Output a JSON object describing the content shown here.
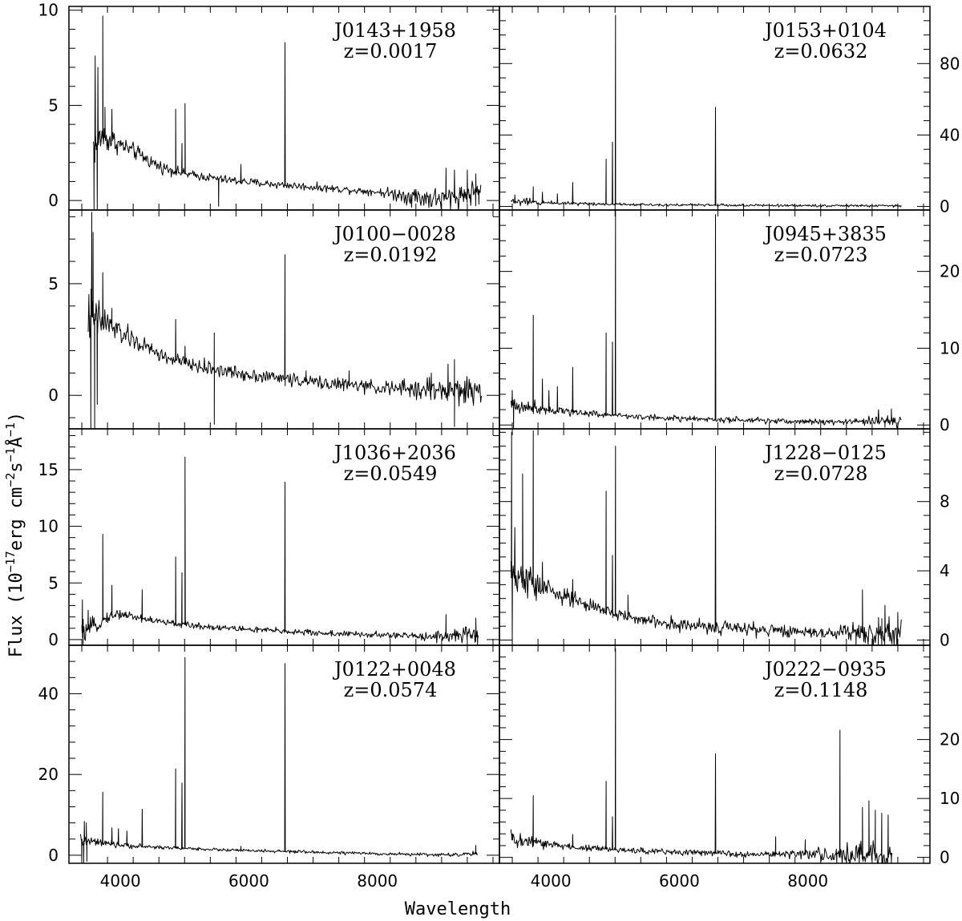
{
  "chart_data": {
    "type": "line",
    "xlabel": "Wavelength",
    "ylabel_parts": {
      "prefix": "Flux (10",
      "exp1": "−17",
      "mid1": "erg cm",
      "exp2": "−2",
      "mid2": "s",
      "exp3": "−1",
      "mid3": "Å",
      "exp4": "−1",
      "suffix": ")"
    },
    "xlim": [
      3200,
      9900
    ],
    "xticks": [
      4000,
      6000,
      8000
    ],
    "panels": [
      {
        "name": "J0143+1958",
        "redshift": "z=0.0017",
        "column": 0,
        "row": 0,
        "tick_side": "left",
        "ylim": [
          -0.5,
          10.2
        ],
        "yticks": [
          0,
          5,
          10
        ],
        "xrange": [
          3580,
          9620
        ],
        "continuum": {
          "x": [
            3620,
            3700,
            3900,
            4200,
            4600,
            5000,
            5600,
            6200,
            6800,
            7400,
            8000,
            8600,
            9000,
            9620
          ],
          "y": [
            2.9,
            3.4,
            3.1,
            2.6,
            1.8,
            1.4,
            1.1,
            0.9,
            0.75,
            0.6,
            0.45,
            0.2,
            0.05,
            0.5
          ]
        },
        "noise": [
          [
            3580,
            1.2
          ],
          [
            4000,
            0.5
          ],
          [
            5000,
            0.25
          ],
          [
            8000,
            0.2
          ],
          [
            8600,
            0.6
          ],
          [
            9620,
            0.7
          ]
        ],
        "lines": [
          [
            3608,
            7.6,
            8
          ],
          [
            3650,
            7.0,
            6
          ],
          [
            3727,
            9.7,
            7
          ],
          [
            3760,
            4.9,
            6
          ],
          [
            3869,
            4.8,
            5
          ],
          [
            4861,
            4.8,
            5
          ],
          [
            4959,
            3.0,
            5
          ],
          [
            5007,
            5.1,
            5
          ],
          [
            5876,
            1.9,
            5
          ],
          [
            6563,
            8.3,
            6
          ],
          [
            9069,
            1.7,
            8
          ],
          [
            9200,
            1.6,
            8
          ],
          [
            9400,
            1.6,
            8
          ],
          [
            9532,
            1.4,
            8
          ]
        ],
        "dips": [
          [
            3590,
            -0.5
          ],
          [
            3640,
            -0.5
          ],
          [
            5530,
            -0.3
          ],
          [
            9580,
            -0.2
          ]
        ]
      },
      {
        "name": "J0100−0028",
        "redshift": "z=0.0192",
        "column": 0,
        "row": 1,
        "tick_side": "left",
        "ylim": [
          -1.5,
          8.3
        ],
        "yticks": [
          0,
          5
        ],
        "xrange": [
          3500,
          9620
        ],
        "continuum": {
          "x": [
            3530,
            3600,
            3800,
            4000,
            4300,
            4700,
            5200,
            5800,
            6400,
            7000,
            7600,
            8200,
            8800,
            9600
          ],
          "y": [
            3.6,
            3.4,
            3.2,
            2.8,
            2.3,
            1.7,
            1.3,
            1.0,
            0.8,
            0.6,
            0.45,
            0.3,
            0.25,
            0.2
          ]
        },
        "noise": [
          [
            3500,
            1.4
          ],
          [
            3900,
            0.6
          ],
          [
            4500,
            0.35
          ],
          [
            8000,
            0.3
          ],
          [
            9100,
            0.7
          ],
          [
            9620,
            0.6
          ]
        ],
        "lines": [
          [
            3555,
            8.2,
            6
          ],
          [
            3575,
            7.3,
            6
          ],
          [
            3727,
            5.5,
            6
          ],
          [
            3869,
            3.9,
            5
          ],
          [
            4861,
            3.4,
            5
          ],
          [
            5007,
            2.2,
            5
          ],
          [
            5462,
            2.8,
            4
          ],
          [
            6563,
            6.3,
            5
          ],
          [
            6890,
            1.1,
            5
          ],
          [
            7560,
            1.1,
            5
          ],
          [
            8840,
            1.0,
            6
          ],
          [
            9100,
            1.4,
            6
          ],
          [
            9200,
            1.6,
            6
          ]
        ],
        "dips": [
          [
            3540,
            -1.5
          ],
          [
            3600,
            -1.5
          ],
          [
            3640,
            -0.4
          ],
          [
            5462,
            -1.3
          ],
          [
            9200,
            -1.4
          ]
        ]
      },
      {
        "name": "J1036+2036",
        "redshift": "z=0.0549",
        "column": 0,
        "row": 2,
        "tick_side": "left",
        "ylim": [
          -0.5,
          18.6
        ],
        "yticks": [
          0,
          5,
          10,
          15
        ],
        "xrange": [
          3400,
          9580
        ],
        "continuum": {
          "x": [
            3400,
            3600,
            3800,
            4000,
            4300,
            4700,
            5200,
            6000,
            7000,
            8000,
            8800,
            9580
          ],
          "y": [
            0.6,
            1.2,
            2.0,
            2.3,
            1.9,
            1.5,
            1.2,
            0.9,
            0.6,
            0.4,
            0.3,
            0.4
          ]
        },
        "noise": [
          [
            3400,
            1.0
          ],
          [
            3800,
            0.5
          ],
          [
            5000,
            0.3
          ],
          [
            8500,
            0.3
          ],
          [
            9580,
            0.9
          ]
        ],
        "lines": [
          [
            3410,
            3.5,
            5
          ],
          [
            3500,
            2.6,
            5
          ],
          [
            3727,
            9.3,
            5
          ],
          [
            3869,
            4.8,
            5
          ],
          [
            4102,
            2.0,
            5
          ],
          [
            4340,
            4.4,
            5
          ],
          [
            4861,
            7.3,
            4
          ],
          [
            4959,
            5.9,
            4
          ],
          [
            5007,
            16.1,
            4
          ],
          [
            6563,
            13.9,
            4
          ],
          [
            9069,
            2.2,
            6
          ],
          [
            9532,
            1.9,
            6
          ]
        ],
        "dips": [
          [
            3420,
            -0.5
          ],
          [
            9560,
            -0.5
          ]
        ]
      },
      {
        "name": "J0122+0048",
        "redshift": "z=0.0574",
        "column": 0,
        "row": 3,
        "tick_side": "left",
        "ylim": [
          -2,
          52
        ],
        "yticks": [
          0,
          20,
          40
        ],
        "xrange": [
          3380,
          9560
        ],
        "continuum": {
          "x": [
            3420,
            3600,
            3800,
            4000,
            4400,
            5000,
            5800,
            6600,
            7400,
            8200,
            9000,
            9560
          ],
          "y": [
            3.5,
            3.2,
            2.8,
            2.5,
            2.1,
            1.7,
            1.2,
            0.9,
            0.6,
            0.3,
            0.1,
            0.3
          ]
        },
        "noise": [
          [
            3380,
            2.0
          ],
          [
            3800,
            0.8
          ],
          [
            5000,
            0.4
          ],
          [
            9000,
            0.4
          ],
          [
            9560,
            0.8
          ]
        ],
        "lines": [
          [
            3440,
            8.4,
            5
          ],
          [
            3470,
            8.0,
            5
          ],
          [
            3727,
            15.6,
            5
          ],
          [
            3869,
            6.8,
            5
          ],
          [
            3970,
            6.6,
            5
          ],
          [
            4102,
            6.0,
            5
          ],
          [
            4340,
            11.4,
            5
          ],
          [
            4861,
            21.4,
            4
          ],
          [
            4959,
            17.9,
            4
          ],
          [
            5007,
            49.0,
            4
          ],
          [
            5876,
            2.2,
            5
          ],
          [
            6563,
            47.5,
            4
          ],
          [
            9532,
            2.4,
            6
          ]
        ],
        "dips": [
          [
            3400,
            -1.8
          ],
          [
            3430,
            -1.8
          ],
          [
            3480,
            -1.5
          ]
        ]
      },
      {
        "name": "J0153+0104",
        "redshift": "z=0.0632",
        "column": 1,
        "row": 0,
        "tick_side": "right",
        "ylim": [
          -2,
          112
        ],
        "yticks": [
          0,
          40,
          80
        ],
        "xrange": [
          3380,
          9460
        ],
        "continuum": {
          "x": [
            3380,
            3800,
            4500,
            5500,
            7000,
            9460
          ],
          "y": [
            2.8,
            2.2,
            1.6,
            1.0,
            0.6,
            0.3
          ]
        },
        "noise": [
          [
            3380,
            3.0
          ],
          [
            4000,
            1.2
          ],
          [
            5000,
            0.8
          ],
          [
            9460,
            0.7
          ]
        ],
        "lines": [
          [
            3440,
            6.5,
            5
          ],
          [
            3727,
            11.0,
            5
          ],
          [
            3869,
            8.0,
            5
          ],
          [
            4102,
            7.0,
            5
          ],
          [
            4340,
            13.5,
            5
          ],
          [
            4861,
            26.5,
            4
          ],
          [
            4959,
            36.0,
            4
          ],
          [
            5007,
            107,
            4
          ],
          [
            6563,
            55.5,
            4
          ]
        ],
        "dips": []
      },
      {
        "name": "J0945+3835",
        "redshift": "z=0.0723",
        "column": 1,
        "row": 1,
        "tick_side": "right",
        "ylim": [
          -0.5,
          28
        ],
        "yticks": [
          0,
          10,
          20
        ],
        "xrange": [
          3380,
          9460
        ],
        "continuum": {
          "x": [
            3380,
            3800,
            4200,
            4800,
            5500,
            6500,
            7500,
            8500,
            9460
          ],
          "y": [
            2.6,
            2.2,
            1.8,
            1.4,
            1.0,
            0.7,
            0.5,
            0.4,
            0.6
          ]
        },
        "noise": [
          [
            3380,
            1.4
          ],
          [
            4000,
            0.6
          ],
          [
            5000,
            0.4
          ],
          [
            8600,
            0.4
          ],
          [
            9460,
            1.0
          ]
        ],
        "lines": [
          [
            3400,
            4.5,
            5
          ],
          [
            3727,
            14.3,
            5
          ],
          [
            3869,
            6.0,
            5
          ],
          [
            3970,
            4.5,
            5
          ],
          [
            4102,
            5.0,
            5
          ],
          [
            4340,
            7.5,
            5
          ],
          [
            4861,
            12.0,
            4
          ],
          [
            4959,
            10.8,
            4
          ],
          [
            5007,
            28.0,
            4
          ],
          [
            6563,
            27.4,
            4
          ],
          [
            9100,
            2.0,
            6
          ],
          [
            9300,
            2.1,
            6
          ]
        ],
        "dips": [
          [
            3420,
            -0.4
          ],
          [
            9200,
            -0.3
          ]
        ]
      },
      {
        "name": "J1228−0125",
        "redshift": "z=0.0728",
        "column": 1,
        "row": 2,
        "tick_side": "right",
        "ylim": [
          -0.3,
          12.2
        ],
        "yticks": [
          0,
          4,
          8
        ],
        "xrange": [
          3380,
          9460
        ],
        "continuum": {
          "x": [
            3380,
            3600,
            3900,
            4300,
            4800,
            5500,
            6300,
            7200,
            8200,
            9460
          ],
          "y": [
            3.6,
            3.4,
            3.0,
            2.4,
            1.7,
            1.1,
            0.8,
            0.6,
            0.45,
            0.4
          ]
        },
        "noise": [
          [
            3380,
            1.5
          ],
          [
            4000,
            0.6
          ],
          [
            5000,
            0.4
          ],
          [
            8200,
            0.4
          ],
          [
            9460,
            1.0
          ]
        ],
        "lines": [
          [
            3390,
            12.0,
            6
          ],
          [
            3440,
            6.5,
            6
          ],
          [
            3560,
            9.6,
            6
          ],
          [
            3727,
            12.1,
            5
          ],
          [
            3869,
            4.5,
            5
          ],
          [
            4340,
            3.5,
            5
          ],
          [
            4861,
            8.6,
            4
          ],
          [
            4959,
            4.9,
            4
          ],
          [
            5007,
            11.2,
            4
          ],
          [
            5200,
            2.6,
            5
          ],
          [
            6563,
            11.2,
            4
          ],
          [
            8850,
            2.9,
            6
          ],
          [
            9100,
            1.3,
            6
          ],
          [
            9200,
            2.0,
            6
          ],
          [
            9400,
            1.6,
            6
          ]
        ],
        "dips": [
          [
            3400,
            -0.3
          ],
          [
            8750,
            -0.3
          ],
          [
            9150,
            -0.3
          ]
        ]
      },
      {
        "name": "J0222−0935",
        "redshift": "z=0.1148",
        "column": 1,
        "row": 3,
        "tick_side": "right",
        "ylim": [
          -1,
          36
        ],
        "yticks": [
          0,
          10,
          20
        ],
        "xrange": [
          3380,
          9320
        ],
        "continuum": {
          "x": [
            3380,
            3800,
            4300,
            5000,
            6000,
            7000,
            8000,
            8600,
            9320
          ],
          "y": [
            3.0,
            2.4,
            1.8,
            1.3,
            0.9,
            0.6,
            0.5,
            0.4,
            0.3
          ]
        },
        "noise": [
          [
            3380,
            2.0
          ],
          [
            4000,
            0.8
          ],
          [
            5000,
            0.5
          ],
          [
            7800,
            0.6
          ],
          [
            8500,
            2.0
          ],
          [
            9320,
            3.0
          ]
        ],
        "lines": [
          [
            3400,
            4.0,
            5
          ],
          [
            3727,
            10.5,
            5
          ],
          [
            4340,
            3.9,
            5
          ],
          [
            4861,
            12.9,
            4
          ],
          [
            4959,
            6.9,
            4
          ],
          [
            5007,
            35.4,
            4
          ],
          [
            6563,
            17.6,
            4
          ],
          [
            7500,
            3.5,
            6
          ],
          [
            7960,
            3.0,
            6
          ],
          [
            8500,
            21.6,
            4
          ],
          [
            8850,
            8.5,
            8
          ],
          [
            8950,
            9.6,
            8
          ],
          [
            9050,
            8.0,
            8
          ],
          [
            9150,
            7.5,
            8
          ],
          [
            9250,
            7.2,
            8
          ]
        ],
        "dips": [
          [
            8450,
            -1.0
          ],
          [
            8600,
            -1.0
          ],
          [
            8800,
            -1.0
          ],
          [
            9300,
            -1.0
          ]
        ]
      }
    ]
  }
}
